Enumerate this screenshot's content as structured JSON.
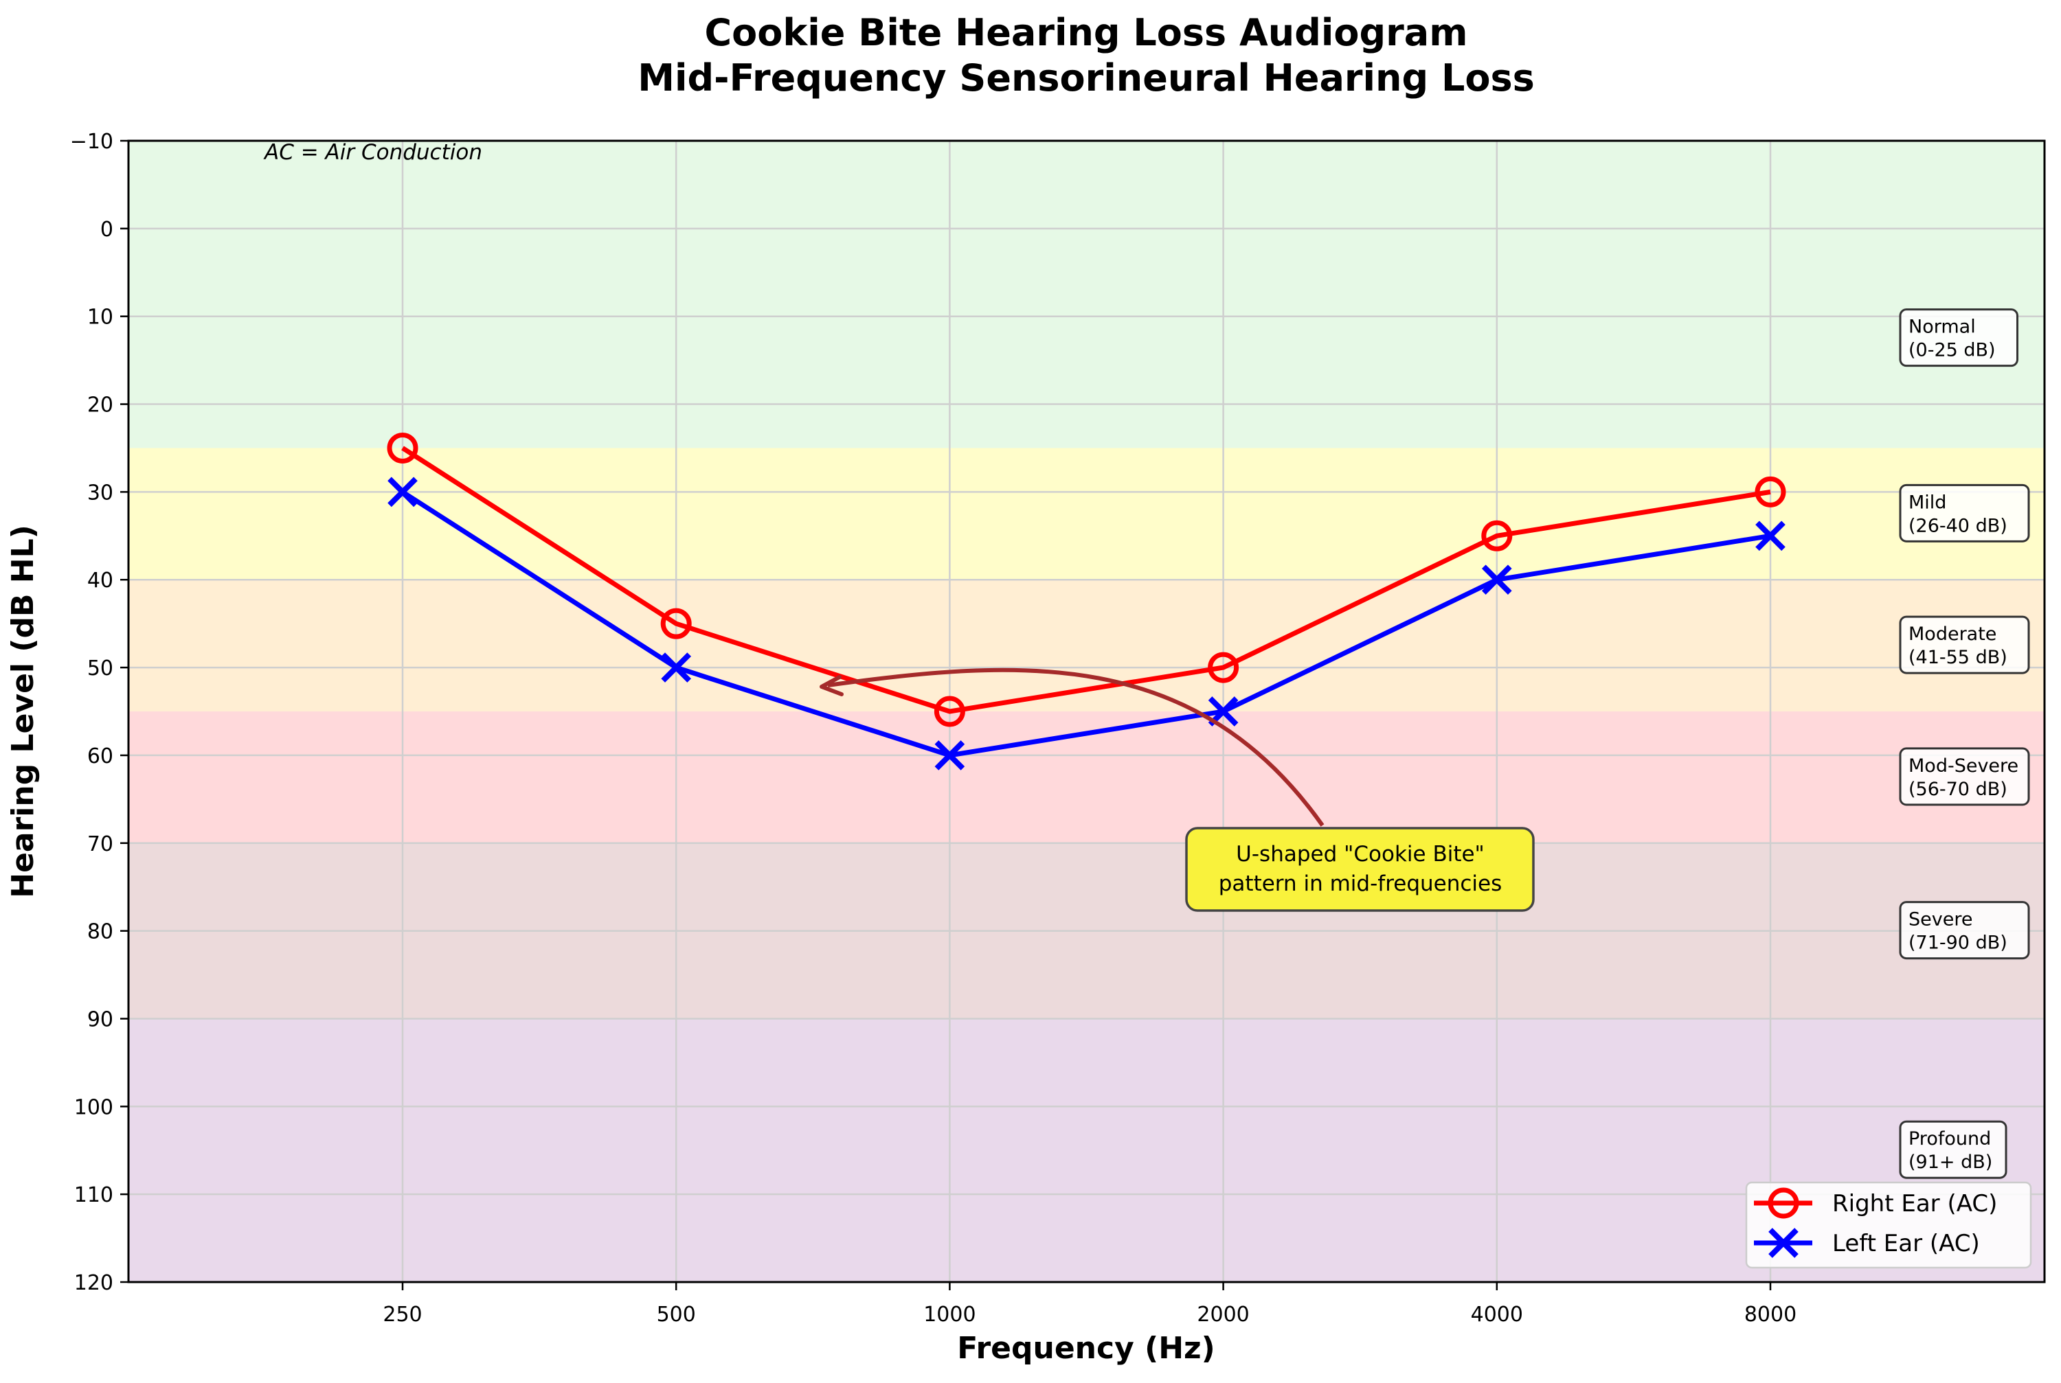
{
  "chart_data": {
    "type": "line",
    "title": "Cookie Bite Hearing Loss Audiogram",
    "subtitle": "Mid-Frequency Sensorineural Hearing Loss",
    "xlabel": "Frequency (Hz)",
    "ylabel": "Hearing Level (dB HL)",
    "x_scale": "log2 (categorical octaves)",
    "categories": [
      "250",
      "500",
      "1000",
      "2000",
      "4000",
      "8000"
    ],
    "ylim": [
      -10,
      120
    ],
    "y_inverted": true,
    "yticks": [
      -10,
      0,
      10,
      20,
      30,
      40,
      50,
      60,
      70,
      80,
      90,
      100,
      110,
      120
    ],
    "grid": true,
    "series": [
      {
        "name": "Right Ear (AC)",
        "color": "#ff0000",
        "marker": "circle-open",
        "values": [
          25,
          45,
          55,
          50,
          35,
          30
        ]
      },
      {
        "name": "Left Ear (AC)",
        "color": "#0000ff",
        "marker": "x",
        "values": [
          30,
          50,
          60,
          55,
          40,
          35
        ]
      }
    ],
    "zones": [
      {
        "name": "Normal",
        "range_label": "(0-25 dB)",
        "from": -10,
        "to": 25,
        "label_at": 12.5,
        "color": "#e6f9e6"
      },
      {
        "name": "Mild",
        "range_label": "(26-40 dB)",
        "from": 25,
        "to": 40,
        "label_at": 32.5,
        "color": "#fffdca"
      },
      {
        "name": "Moderate",
        "range_label": "(41-55 dB)",
        "from": 40,
        "to": 55,
        "label_at": 47.5,
        "color": "#ffeed3"
      },
      {
        "name": "Mod-Severe",
        "range_label": "(56-70 dB)",
        "from": 55,
        "to": 70,
        "label_at": 62.5,
        "color": "#ffd9db"
      },
      {
        "name": "Severe",
        "range_label": "(71-90 dB)",
        "from": 70,
        "to": 90,
        "label_at": 80,
        "color": "#ecdadb"
      },
      {
        "name": "Profound",
        "range_label": "(91+ dB)",
        "from": 90,
        "to": 120,
        "label_at": 105,
        "color": "#e9d9eb"
      }
    ],
    "annotations": [
      {
        "text_lines": [
          "U-shaped \"Cookie Bite\"",
          "pattern in mid-frequencies"
        ],
        "arrow_color": "#a52a2a",
        "box_color": "#f9f23c"
      },
      {
        "text": "AC = Air Conduction",
        "style": "italic",
        "position": "top-left"
      }
    ],
    "legend": {
      "position": "lower right",
      "entries": [
        "Right Ear (AC)",
        "Left Ear (AC)"
      ]
    }
  }
}
